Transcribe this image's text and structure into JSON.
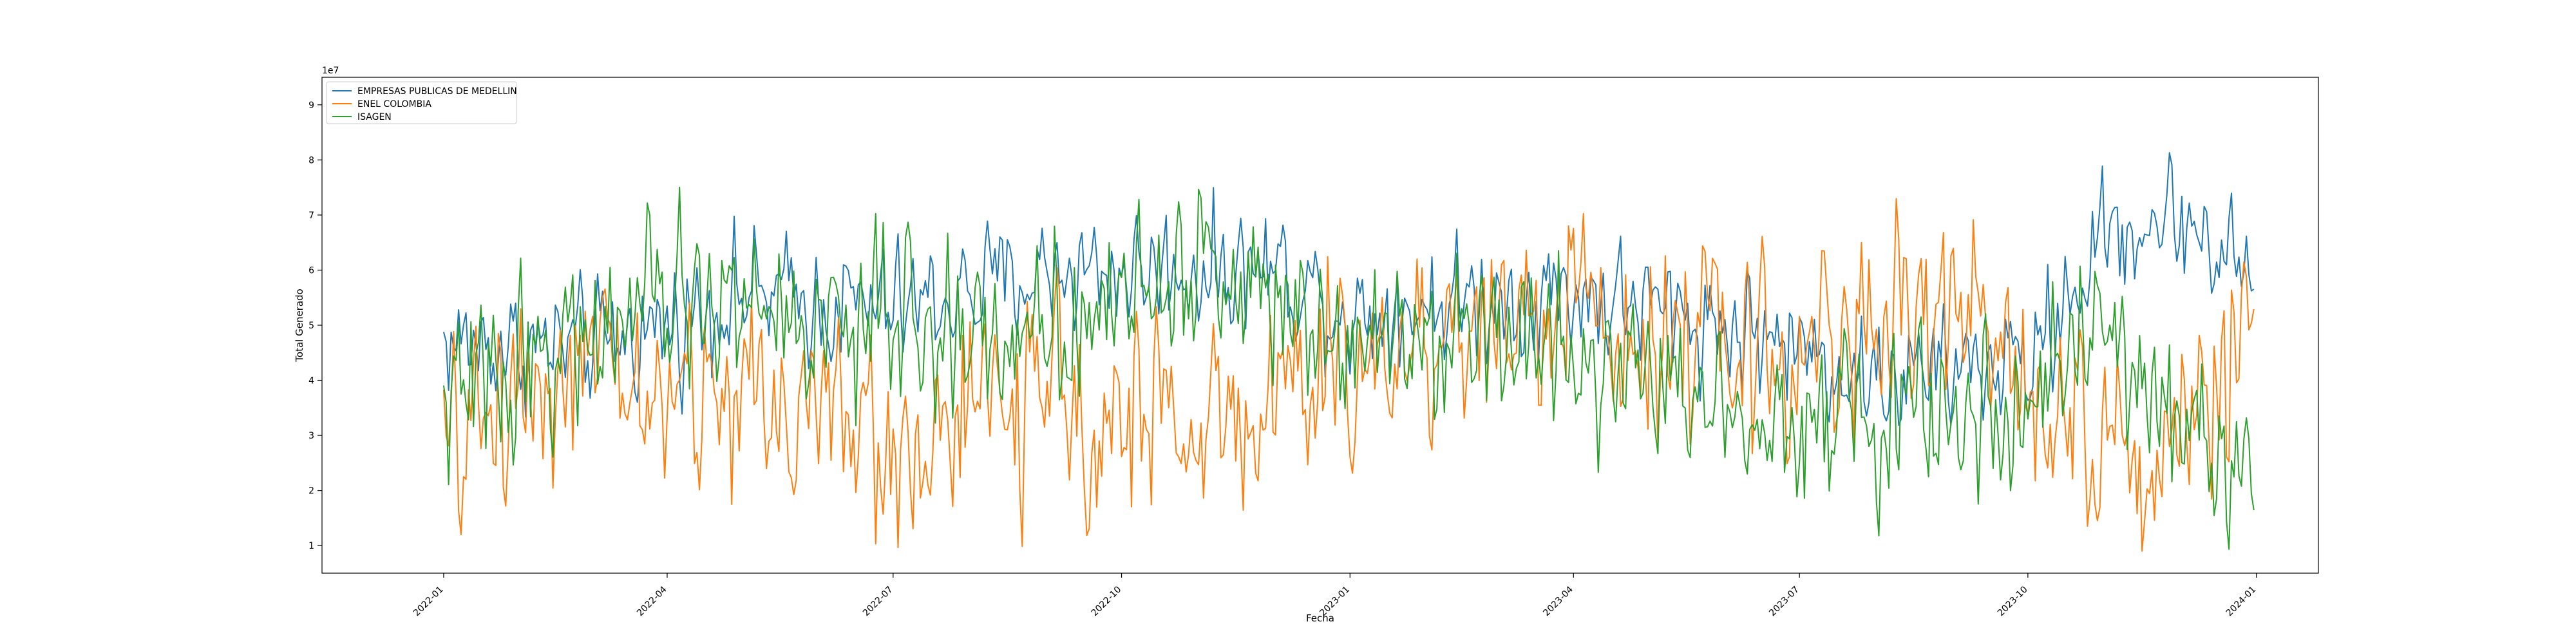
{
  "chart_data": {
    "type": "line",
    "title": "",
    "xlabel": "Fecha",
    "ylabel": "Total Generado",
    "y_offset_text": "1e7",
    "x_range": [
      "2021-11-13",
      "2024-01-26"
    ],
    "ylim": [
      0.5,
      9.5
    ],
    "y_scale_multiplier": 10000000,
    "x_ticks": [
      "2022-01",
      "2022-04",
      "2022-07",
      "2022-10",
      "2023-01",
      "2023-04",
      "2023-07",
      "2023-10",
      "2024-01"
    ],
    "y_ticks": [
      1,
      2,
      3,
      4,
      5,
      6,
      7,
      8,
      9
    ],
    "grid": false,
    "legend_position": "upper left",
    "series": [
      {
        "name": "EMPRESAS PUBLICAS DE MEDELLIN",
        "color": "#1f77b4",
        "keypoints": [
          [
            "2022-01-01",
            4.7
          ],
          [
            "2022-02-01",
            4.6
          ],
          [
            "2022-03-01",
            4.6
          ],
          [
            "2022-04-01",
            5.0
          ],
          [
            "2022-05-01",
            5.6
          ],
          [
            "2022-06-01",
            5.4
          ],
          [
            "2022-07-01",
            5.3
          ],
          [
            "2022-08-01",
            5.6
          ],
          [
            "2022-09-01",
            6.0
          ],
          [
            "2022-10-01",
            6.0
          ],
          [
            "2022-11-01",
            6.0
          ],
          [
            "2022-12-01",
            6.1
          ],
          [
            "2023-01-01",
            5.2
          ],
          [
            "2023-02-01",
            5.4
          ],
          [
            "2023-03-01",
            5.5
          ],
          [
            "2023-04-01",
            5.6
          ],
          [
            "2023-05-01",
            5.3
          ],
          [
            "2023-06-01",
            5.0
          ],
          [
            "2023-07-01",
            4.6
          ],
          [
            "2023-08-01",
            4.0
          ],
          [
            "2023-09-01",
            4.2
          ],
          [
            "2023-10-01",
            4.3
          ],
          [
            "2023-11-01",
            6.6
          ],
          [
            "2023-12-01",
            7.0
          ],
          [
            "2023-12-31",
            5.9
          ]
        ],
        "noise": 0.8
      },
      {
        "name": "ENEL COLOMBIA",
        "color": "#ff7f0e",
        "keypoints": [
          [
            "2022-01-01",
            2.6
          ],
          [
            "2022-02-01",
            4.0
          ],
          [
            "2022-03-01",
            4.2
          ],
          [
            "2022-04-01",
            3.6
          ],
          [
            "2022-05-01",
            3.8
          ],
          [
            "2022-06-01",
            3.6
          ],
          [
            "2022-07-01",
            2.6
          ],
          [
            "2022-08-01",
            3.4
          ],
          [
            "2022-09-01",
            3.6
          ],
          [
            "2022-10-01",
            3.4
          ],
          [
            "2022-11-01",
            3.2
          ],
          [
            "2022-12-01",
            3.6
          ],
          [
            "2023-01-01",
            4.2
          ],
          [
            "2023-02-01",
            4.8
          ],
          [
            "2023-03-01",
            5.0
          ],
          [
            "2023-04-01",
            5.3
          ],
          [
            "2023-05-01",
            5.0
          ],
          [
            "2023-06-01",
            4.6
          ],
          [
            "2023-07-01",
            4.4
          ],
          [
            "2023-08-01",
            5.2
          ],
          [
            "2023-09-01",
            5.2
          ],
          [
            "2023-10-01",
            4.4
          ],
          [
            "2023-11-01",
            2.8
          ],
          [
            "2023-12-01",
            2.8
          ],
          [
            "2023-12-31",
            4.8
          ]
        ],
        "noise": 1.3
      },
      {
        "name": "ISAGEN",
        "color": "#2ca02c",
        "keypoints": [
          [
            "2022-01-01",
            3.5
          ],
          [
            "2022-02-01",
            4.4
          ],
          [
            "2022-03-01",
            4.8
          ],
          [
            "2022-04-01",
            5.4
          ],
          [
            "2022-05-01",
            5.4
          ],
          [
            "2022-06-01",
            5.0
          ],
          [
            "2022-07-01",
            5.0
          ],
          [
            "2022-08-01",
            4.8
          ],
          [
            "2022-09-01",
            5.0
          ],
          [
            "2022-10-01",
            5.6
          ],
          [
            "2022-11-01",
            6.0
          ],
          [
            "2022-12-01",
            5.6
          ],
          [
            "2023-01-01",
            5.0
          ],
          [
            "2023-02-01",
            5.0
          ],
          [
            "2023-03-01",
            4.8
          ],
          [
            "2023-04-01",
            4.6
          ],
          [
            "2023-05-01",
            4.0
          ],
          [
            "2023-06-01",
            3.6
          ],
          [
            "2023-07-01",
            3.4
          ],
          [
            "2023-08-01",
            3.2
          ],
          [
            "2023-09-01",
            3.4
          ],
          [
            "2023-10-01",
            3.6
          ],
          [
            "2023-11-01",
            4.8
          ],
          [
            "2023-12-01",
            3.2
          ],
          [
            "2023-12-31",
            2.4
          ]
        ],
        "noise": 1.1
      }
    ]
  }
}
